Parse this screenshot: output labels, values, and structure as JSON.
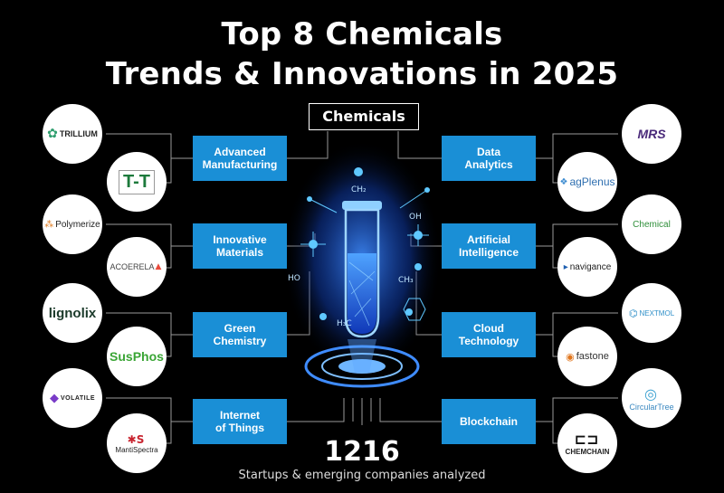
{
  "title_line1": "Top 8 Chemicals",
  "title_line2": "Trends & Innovations in 2025",
  "center_label": "Chemicals",
  "trends": {
    "advanced_manufacturing": "Advanced\nManufacturing",
    "innovative_materials": "Innovative\nMaterials",
    "green_chemistry": "Green\nChemistry",
    "internet_of_things": "Internet\nof Things",
    "data_analytics": "Data\nAnalytics",
    "artificial_intelligence": "Artificial\nIntelligence",
    "cloud_technology": "Cloud\nTechnology",
    "blockchain": "Blockchain"
  },
  "logos": {
    "trillium": "TRILLIUM",
    "tt": "T-T",
    "polymerize": "Polymerize",
    "acoerela": "ACOERELA",
    "lignolix": "lignolix",
    "susphos": "SusPhos",
    "volatile": "VOLATILE",
    "mantispectra": "MantiSpectra",
    "mrs": "MRS",
    "agplenus": "agPlenus",
    "chemical": "Chemical",
    "navigance": "navigance",
    "nextmol": "NEXTMOL",
    "fastone": "fastone",
    "circulartree": "CircularTree",
    "chemchain": "CHEMCHAIN"
  },
  "art_labels": {
    "ch2": "CH₂",
    "oh": "OH",
    "ho": "HO",
    "ch3": "CH₃",
    "h3c": "H₃C"
  },
  "stat_count": "1216",
  "stat_label": "Startups & emerging companies analyzed",
  "colors": {
    "trend_box": "#1a8fd6",
    "background": "#000000",
    "glow": "#1e6bff"
  }
}
